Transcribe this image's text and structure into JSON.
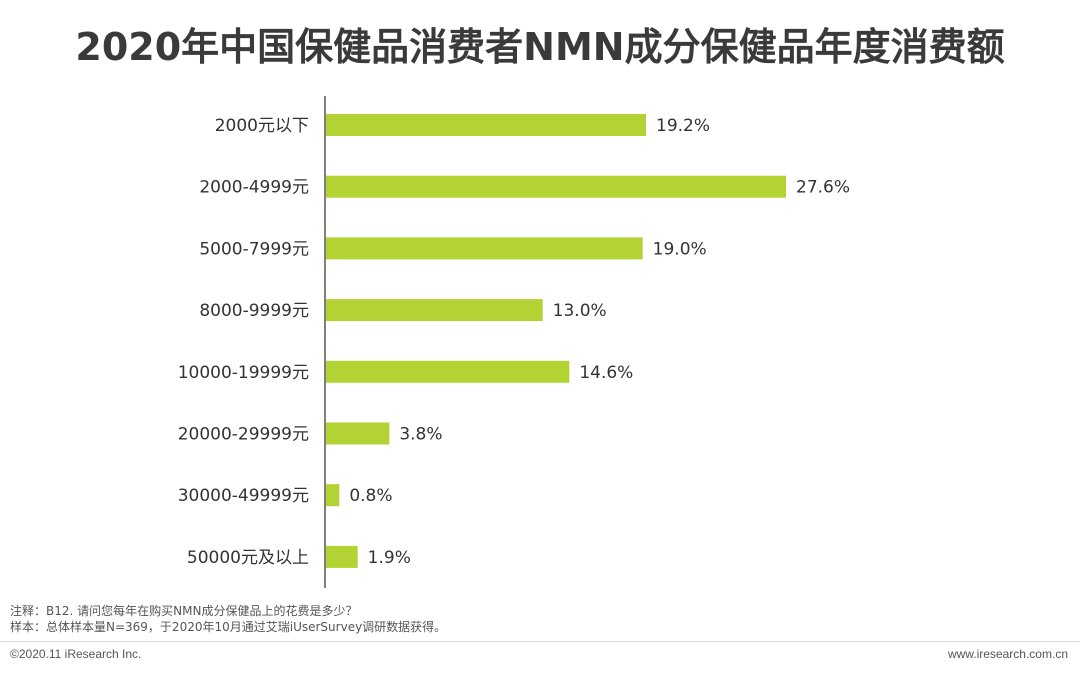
{
  "chart_data": {
    "type": "bar",
    "orientation": "horizontal",
    "title": "2020年中国保健品消费者NMN成分保健品年度消费额",
    "categories": [
      "2000元以下",
      "2000-4999元",
      "5000-7999元",
      "8000-9999元",
      "10000-19999元",
      "20000-29999元",
      "30000-49999元",
      "50000元及以上"
    ],
    "values": [
      19.2,
      27.6,
      19.0,
      13.0,
      14.6,
      3.8,
      0.8,
      1.9
    ],
    "value_labels": [
      "19.2%",
      "27.6%",
      "19.0%",
      "13.0%",
      "14.6%",
      "3.8%",
      "0.8%",
      "1.9%"
    ],
    "unit": "%",
    "xlim": [
      0,
      30
    ],
    "grid": false,
    "bar_color": "#b3d233"
  },
  "notes": {
    "note": "注释：B12. 请问您每年在购买NMN成分保健品上的花费是多少？",
    "sample": "样本：总体样本量N=369，于2020年10月通过艾瑞iUserSurvey调研数据获得。"
  },
  "footer": {
    "copyright": "©2020.11 iResearch Inc.",
    "website": "www.iresearch.com.cn"
  }
}
